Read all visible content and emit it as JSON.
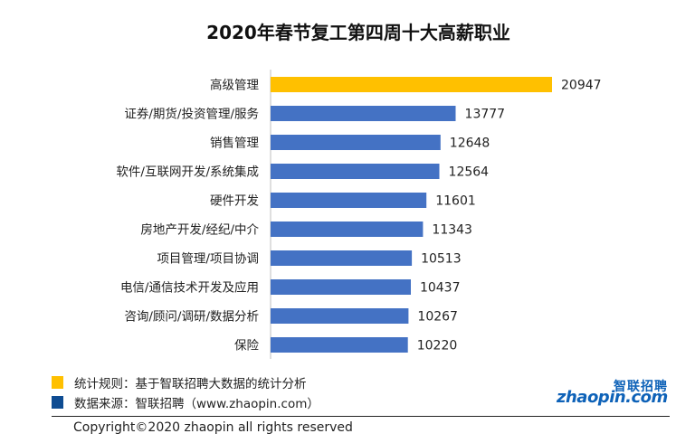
{
  "chart_data": {
    "type": "bar",
    "orientation": "horizontal",
    "title": "2020年春节复工第四周十大高薪职业",
    "categories": [
      "高级管理",
      "证券/期货/投资管理/服务",
      "销售管理",
      "软件/互联网开发/系统集成",
      "硬件开发",
      "房地产开发/经纪/中介",
      "项目管理/项目协调",
      "电信/通信技术开发及应用",
      "咨询/顾问/调研/数据分析",
      "保险"
    ],
    "values": [
      20947,
      13777,
      12648,
      12564,
      11601,
      11343,
      10513,
      10437,
      10267,
      10220
    ],
    "highlight_color": "#FFC000",
    "bar_color": "#4472C4",
    "xlim": [
      0,
      21000
    ],
    "grid": false
  },
  "legend_notes": [
    {
      "text": "统计规则：基于智联招聘大数据的统计分析",
      "color": "#FFC000"
    },
    {
      "text": "数据来源：智联招聘（www.zhaopin.com）",
      "color": "#0E4C92"
    }
  ],
  "logo": {
    "cn": "智联招聘",
    "en": "zhaopin.com"
  },
  "copyright": "Copyright©2020 zhaopin all rights reserved"
}
